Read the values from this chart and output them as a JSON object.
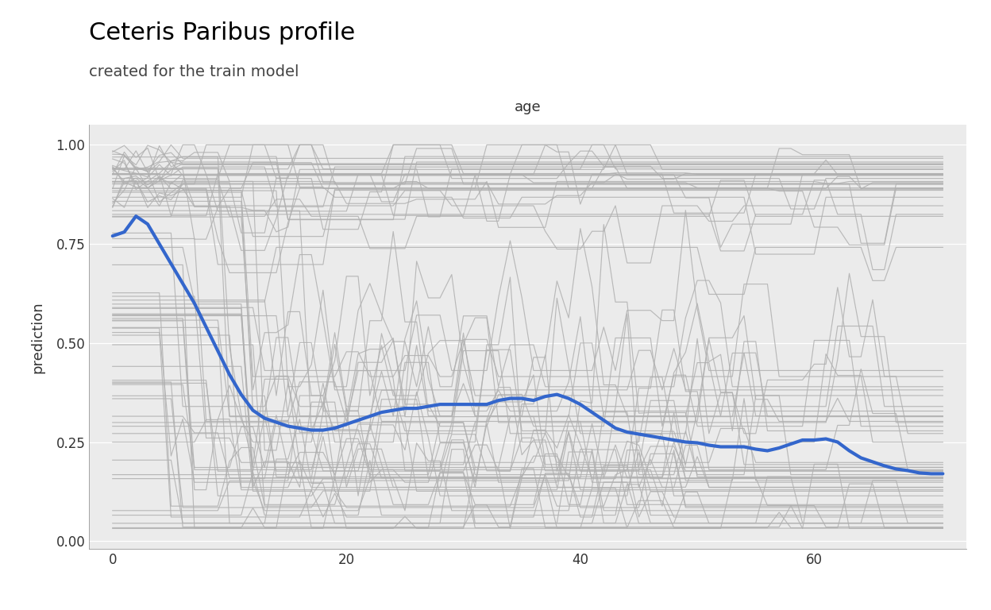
{
  "title": "Ceteris Paribus profile",
  "subtitle": "created for the train model",
  "xlabel_top": "age",
  "ylabel": "prediction",
  "xlim": [
    -2,
    73
  ],
  "ylim": [
    -0.02,
    1.05
  ],
  "xticks": [
    0,
    20,
    40,
    60
  ],
  "yticks": [
    0.0,
    0.25,
    0.5,
    0.75,
    1.0
  ],
  "bg_color": "#ebebeb",
  "grid_color": "#ffffff",
  "cp_color": "#b0b0b0",
  "pdp_color": "#3366cc",
  "pdp_linewidth": 3.0,
  "cp_linewidth": 0.85,
  "cp_alpha": 0.85,
  "title_fontsize": 22,
  "subtitle_fontsize": 14,
  "label_fontsize": 13,
  "tick_fontsize": 12,
  "age_points": [
    0,
    1,
    2,
    3,
    4,
    5,
    6,
    7,
    8,
    9,
    10,
    11,
    12,
    13,
    14,
    15,
    16,
    17,
    18,
    19,
    20,
    21,
    22,
    23,
    24,
    25,
    26,
    27,
    28,
    29,
    30,
    31,
    32,
    33,
    34,
    35,
    36,
    37,
    38,
    39,
    40,
    41,
    42,
    43,
    44,
    45,
    46,
    47,
    48,
    49,
    50,
    51,
    52,
    53,
    54,
    55,
    56,
    57,
    58,
    59,
    60,
    61,
    62,
    63,
    64,
    65,
    66,
    67,
    68,
    69,
    70,
    71
  ],
  "pdp_values": [
    0.77,
    0.78,
    0.82,
    0.8,
    0.75,
    0.7,
    0.65,
    0.6,
    0.54,
    0.48,
    0.42,
    0.37,
    0.33,
    0.31,
    0.3,
    0.29,
    0.285,
    0.28,
    0.28,
    0.285,
    0.295,
    0.305,
    0.315,
    0.325,
    0.33,
    0.335,
    0.335,
    0.34,
    0.345,
    0.345,
    0.345,
    0.345,
    0.345,
    0.355,
    0.36,
    0.36,
    0.355,
    0.365,
    0.37,
    0.36,
    0.345,
    0.325,
    0.305,
    0.285,
    0.275,
    0.27,
    0.265,
    0.26,
    0.255,
    0.25,
    0.248,
    0.242,
    0.238,
    0.238,
    0.238,
    0.232,
    0.228,
    0.235,
    0.245,
    0.255,
    0.255,
    0.258,
    0.25,
    0.228,
    0.21,
    0.2,
    0.19,
    0.182,
    0.178,
    0.172,
    0.17,
    0.17
  ]
}
